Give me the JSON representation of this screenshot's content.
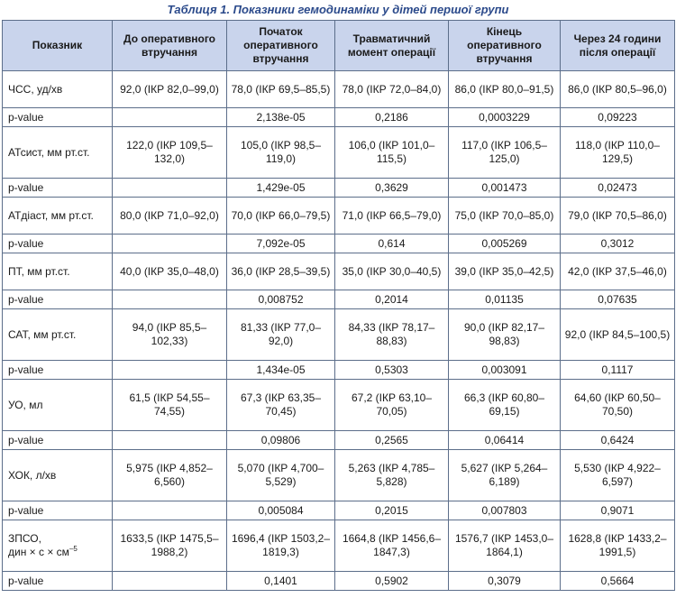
{
  "caption": "Таблиця 1. Показники гемодинаміки у дітей першої групи",
  "headers": [
    "Показник",
    "До оперативного втручання",
    "Початок оперативного втручання",
    "Травматичний момент операції",
    "Кінець оперативного втручання",
    "Через 24 години після операції"
  ],
  "rows": [
    {
      "label": "ЧСС, уд/хв",
      "cells": [
        "92,0 (ІКР 82,0–99,0)",
        "78,0 (ІКР 69,5–85,5)",
        "78,0 (ІКР 72,0–84,0)",
        "86,0 (ІКР 80,0–91,5)",
        "86,0 (ІКР 80,5–96,0)"
      ]
    },
    {
      "label": "p-value",
      "cells": [
        "",
        "2,138e-05",
        "0,2186",
        "0,0003229",
        "0,09223"
      ]
    },
    {
      "label": "АТсист, мм рт.ст.",
      "cells": [
        "122,0 (ІКР 109,5–132,0)",
        "105,0 (ІКР 98,5–119,0)",
        "106,0 (ІКР 101,0–115,5)",
        "117,0 (ІКР 106,5–125,0)",
        "118,0 (ІКР 110,0–129,5)"
      ]
    },
    {
      "label": "p-value",
      "cells": [
        "",
        "1,429e-05",
        "0,3629",
        "0,001473",
        "0,02473"
      ]
    },
    {
      "label": "АТдіаст, мм рт.ст.",
      "cells": [
        "80,0 (ІКР 71,0–92,0)",
        "70,0 (ІКР 66,0–79,5)",
        "71,0 (ІКР 66,5–79,0)",
        "75,0 (ІКР 70,0–85,0)",
        "79,0 (ІКР 70,5–86,0)"
      ]
    },
    {
      "label": "p-value",
      "cells": [
        "",
        "7,092e-05",
        "0,614",
        "0,005269",
        "0,3012"
      ]
    },
    {
      "label": "ПТ, мм рт.ст.",
      "cells": [
        "40,0 (ІКР 35,0–48,0)",
        "36,0 (ІКР 28,5–39,5)",
        "35,0 (ІКР 30,0–40,5)",
        "39,0 (ІКР 35,0–42,5)",
        "42,0 (ІКР 37,5–46,0)"
      ]
    },
    {
      "label": "p-value",
      "cells": [
        "",
        "0,008752",
        "0,2014",
        "0,01135",
        "0,07635"
      ]
    },
    {
      "label": "САТ, мм рт.ст.",
      "cells": [
        "94,0 (ІКР 85,5–102,33)",
        "81,33 (ІКР 77,0–92,0)",
        "84,33 (ІКР 78,17–88,83)",
        "90,0 (ІКР 82,17–98,83)",
        "92,0 (ІКР 84,5–100,5)"
      ]
    },
    {
      "label": "p-value",
      "cells": [
        "",
        "1,434e-05",
        "0,5303",
        "0,003091",
        "0,1117"
      ]
    },
    {
      "label": "УО, мл",
      "cells": [
        "61,5 (ІКР 54,55–74,55)",
        "67,3 (ІКР 63,35–70,45)",
        "67,2 (ІКР 63,10–70,05)",
        "66,3 (ІКР 60,80–69,15)",
        "64,60 (ІКР 60,50–70,50)"
      ]
    },
    {
      "label": "p-value",
      "cells": [
        "",
        "0,09806",
        "0,2565",
        "0,06414",
        "0,6424"
      ]
    },
    {
      "label": "ХОК, л/хв",
      "cells": [
        "5,975 (ІКР 4,852–6,560)",
        "5,070 (ІКР 4,700–5,529)",
        "5,263 (ІКР 4,785–5,828)",
        "5,627 (ІКР 5,264–6,189)",
        "5,530 (ІКР 4,922–6,597)"
      ]
    },
    {
      "label": "p-value",
      "cells": [
        "",
        "0,005084",
        "0,2015",
        "0,007803",
        "0,9071"
      ]
    },
    {
      "label": "ЗПСО,",
      "label2": "дин × с × см",
      "label_sup": "–5",
      "cells": [
        "1633,5 (ІКР 1475,5–1988,2)",
        "1696,4 (ІКР 1503,2–1819,3)",
        "1664,8 (ІКР 1456,6–1847,3)",
        "1576,7 (ІКР 1453,0–1864,1)",
        "1628,8 (ІКР 1433,2–1991,5)"
      ]
    },
    {
      "label": "p-value",
      "cells": [
        "",
        "0,1401",
        "0,5902",
        "0,3079",
        "0,5664"
      ]
    }
  ]
}
